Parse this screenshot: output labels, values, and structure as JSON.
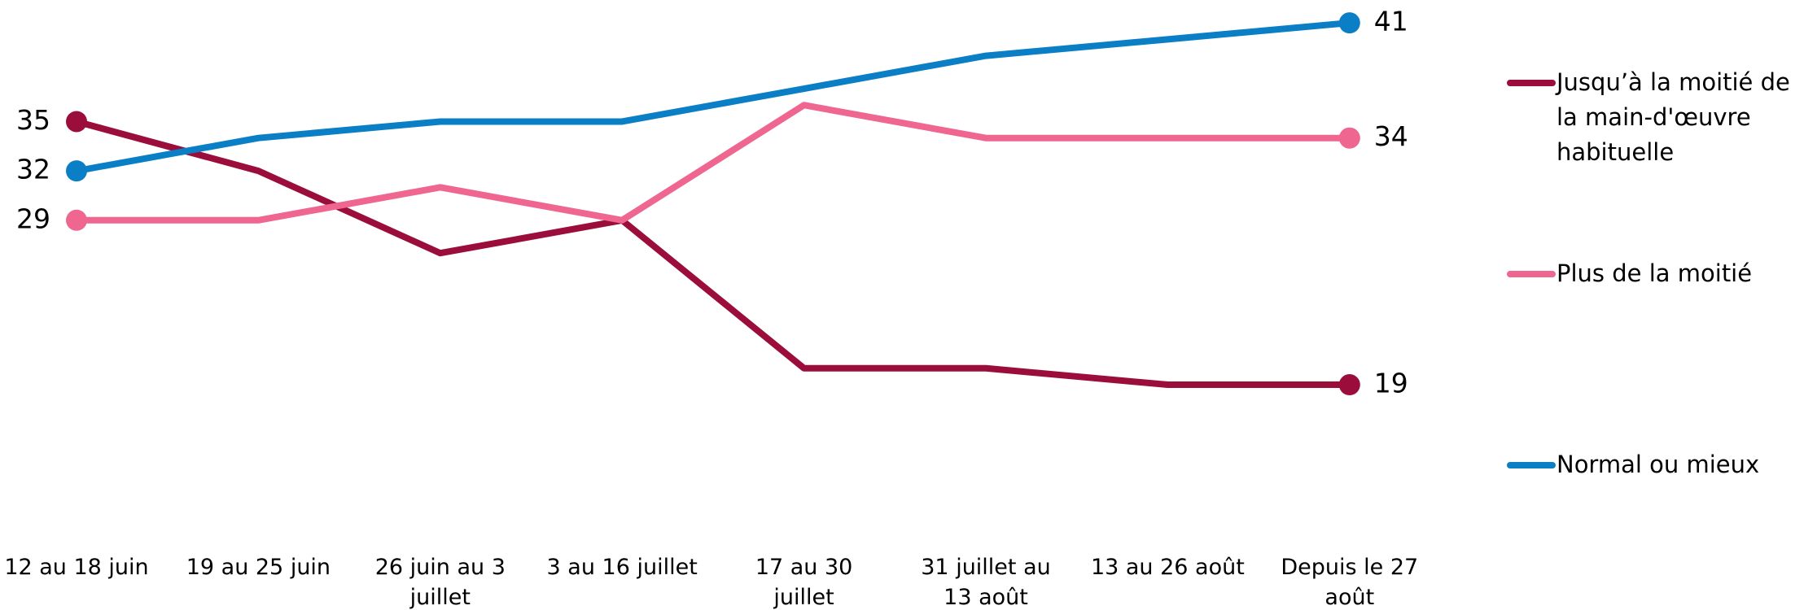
{
  "chart_data": {
    "type": "line",
    "categories": [
      "12 au 18 juin",
      "19 au 25 juin",
      "26 juin au 3 juillet",
      "3 au 16 juillet",
      "17 au 30 juillet",
      "31 juillet au 13 août",
      "13 au 26 août",
      "Depuis le 27 août"
    ],
    "series": [
      {
        "name": "Jusqu’à la moitié de la main-d'œuvre habituelle",
        "color": "#9b0d3a",
        "values": [
          35,
          32,
          27,
          29,
          20,
          20,
          19,
          19
        ]
      },
      {
        "name": "Plus de la moitié",
        "color": "#ef6690",
        "values": [
          29,
          29,
          31,
          29,
          36,
          34,
          34,
          34
        ]
      },
      {
        "name": "Normal ou mieux",
        "color": "#0a7fc5",
        "values": [
          32,
          34,
          35,
          35,
          37,
          39,
          40,
          41
        ]
      }
    ],
    "ylim": [
      10,
      43
    ],
    "labels_at": "ends",
    "legend": "right",
    "grid": false
  }
}
